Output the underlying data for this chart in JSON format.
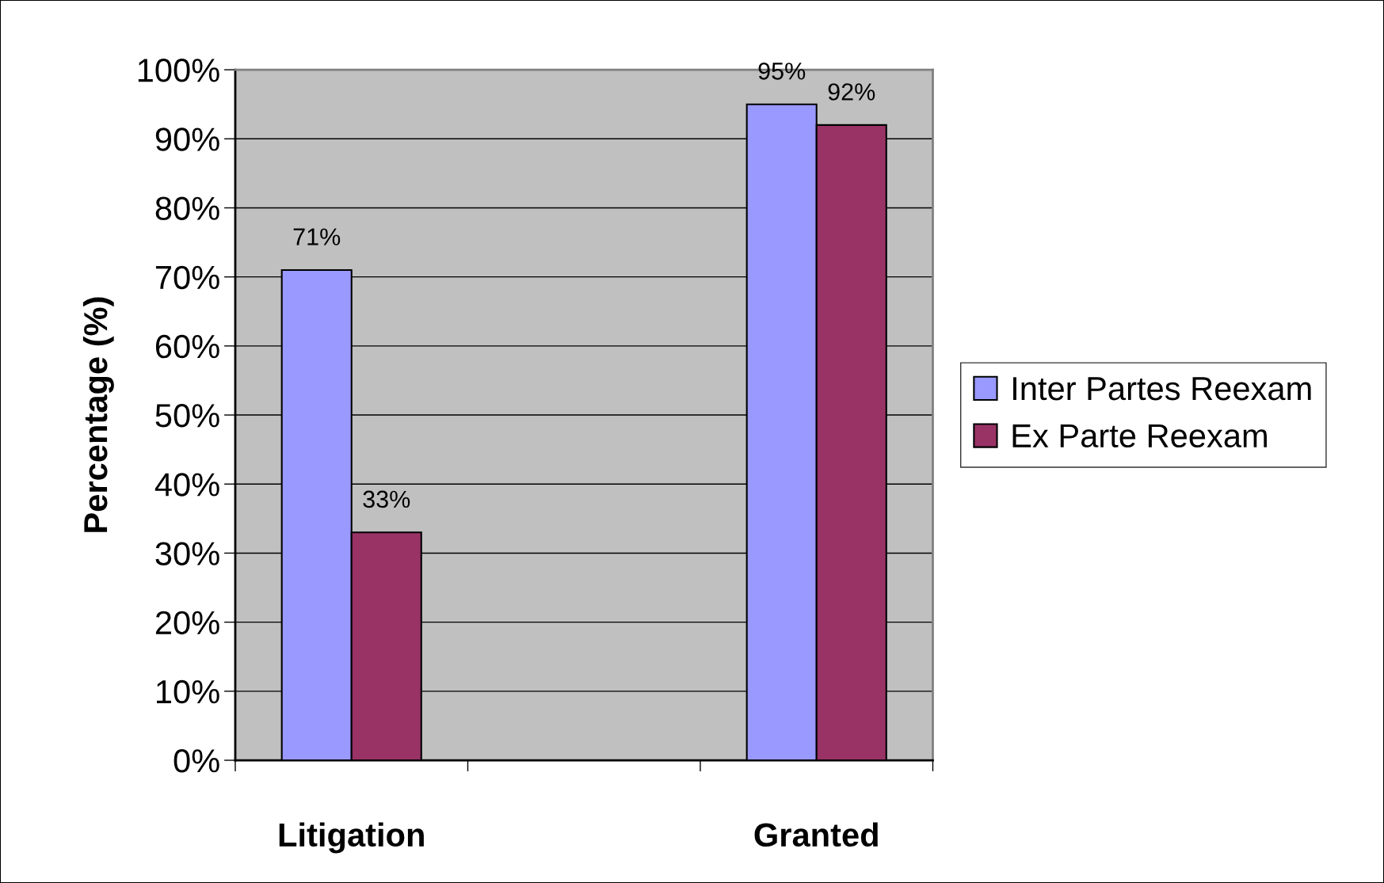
{
  "chart_data": {
    "type": "bar",
    "ylabel": "Percentage (%)",
    "categories": [
      "Litigation",
      null,
      "Granted"
    ],
    "series": [
      {
        "name": "Inter Partes Reexam",
        "color": "#9999ff",
        "values": [
          71,
          null,
          95
        ],
        "value_labels": [
          "71%",
          null,
          "95%"
        ]
      },
      {
        "name": "Ex Parte Reexam",
        "color": "#993366",
        "values": [
          33,
          null,
          92
        ],
        "value_labels": [
          "33%",
          null,
          "92%"
        ]
      }
    ],
    "ylim": [
      0,
      100
    ],
    "yticks": [
      {
        "value": 0,
        "label": "0%"
      },
      {
        "value": 10,
        "label": "10%"
      },
      {
        "value": 20,
        "label": "20%"
      },
      {
        "value": 30,
        "label": "30%"
      },
      {
        "value": 40,
        "label": "40%"
      },
      {
        "value": 50,
        "label": "50%"
      },
      {
        "value": 60,
        "label": "60%"
      },
      {
        "value": 70,
        "label": "70%"
      },
      {
        "value": 80,
        "label": "80%"
      },
      {
        "value": 90,
        "label": "90%"
      },
      {
        "value": 100,
        "label": "100%"
      }
    ],
    "grid": "y",
    "legend": "right"
  }
}
